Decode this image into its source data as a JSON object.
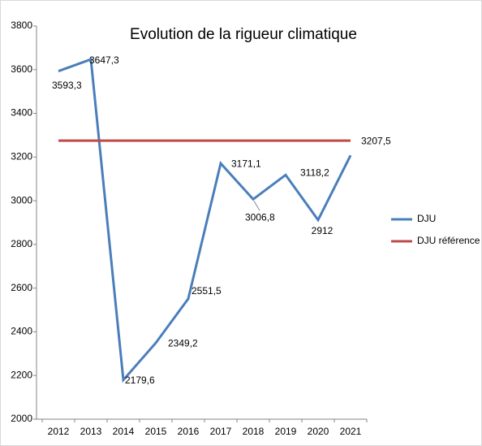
{
  "chart_data": {
    "type": "line",
    "title": "Evolution de la rigueur climatique",
    "categories": [
      "2012",
      "2013",
      "2014",
      "2015",
      "2016",
      "2017",
      "2018",
      "2019",
      "2020",
      "2021"
    ],
    "series": [
      {
        "name": "DJU",
        "color": "#4a7ebb",
        "values": [
          3593.3,
          3647.3,
          2179.6,
          2349.2,
          2551.5,
          3171.1,
          3006.8,
          3118.2,
          2912,
          3207.5
        ],
        "value_labels": [
          "3593,3",
          "3647,3",
          "2179,6",
          "2349,2",
          "2551,5",
          "3171,1",
          "3006,8",
          "3118,2",
          "2912",
          "3207,5"
        ]
      },
      {
        "name": "DJU référence",
        "color": "#be4b48",
        "values": [
          3275,
          3275,
          3275,
          3275,
          3275,
          3275,
          3275,
          3275,
          3275,
          3275
        ]
      }
    ],
    "ylim": [
      2000,
      3800
    ],
    "yticks": [
      2000,
      2200,
      2400,
      2600,
      2800,
      3000,
      3200,
      3400,
      3600,
      3800
    ],
    "grid": false,
    "legend": "right"
  }
}
